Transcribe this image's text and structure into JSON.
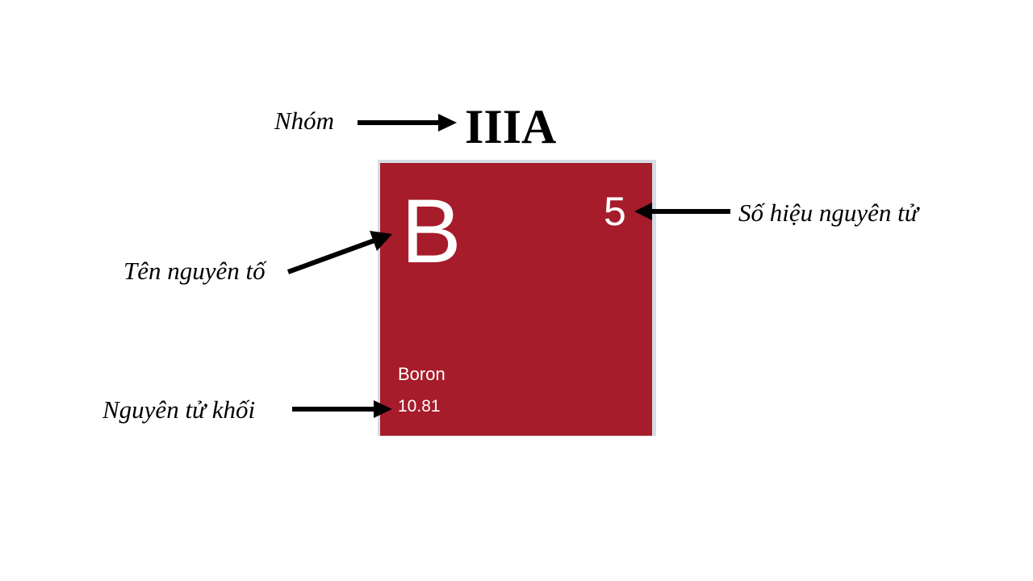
{
  "group": {
    "caption": "Nhóm",
    "value": "IIIA"
  },
  "element": {
    "symbol": "B",
    "atomic_number": "5",
    "name": "Boron",
    "atomic_mass": "10.81",
    "tile_color": "#a61c2b"
  },
  "annotations": {
    "symbol_label": "Tên nguyên tố",
    "atomic_number_label": "Số hiệu nguyên tử",
    "atomic_mass_label": "Nguyên tử khối"
  }
}
